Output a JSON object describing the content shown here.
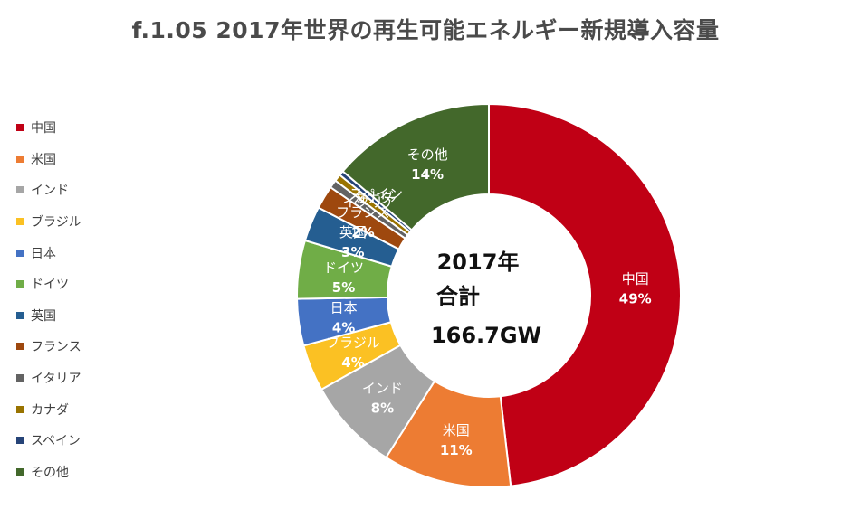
{
  "title": "f.1.05  2017年世界の再生可能エネルギー新規導入容量",
  "center": {
    "line1": "2017年",
    "line2": "合計",
    "line3": "166.7GW"
  },
  "chart_data": {
    "type": "pie",
    "donut": true,
    "legend_position": "left",
    "categories": [
      "中国",
      "米国",
      "インド",
      "ブラジル",
      "日本",
      "ドイツ",
      "英国",
      "フランス",
      "イタリア",
      "カナダ",
      "スペイン",
      "その他"
    ],
    "values": [
      49,
      11,
      8,
      4,
      4,
      5,
      3,
      2,
      0.7,
      0.6,
      0.4,
      14
    ],
    "data_labels": [
      "49%",
      "11%",
      "8%",
      "4%",
      "4%",
      "5%",
      "3%",
      "2%",
      "",
      "",
      "",
      "14%"
    ],
    "colors": [
      "#c00015",
      "#ed7c33",
      "#a6a6a6",
      "#fbc123",
      "#4472c4",
      "#70ad47",
      "#255e91",
      "#9e480e",
      "#636363",
      "#997300",
      "#264478",
      "#43682b"
    ]
  }
}
